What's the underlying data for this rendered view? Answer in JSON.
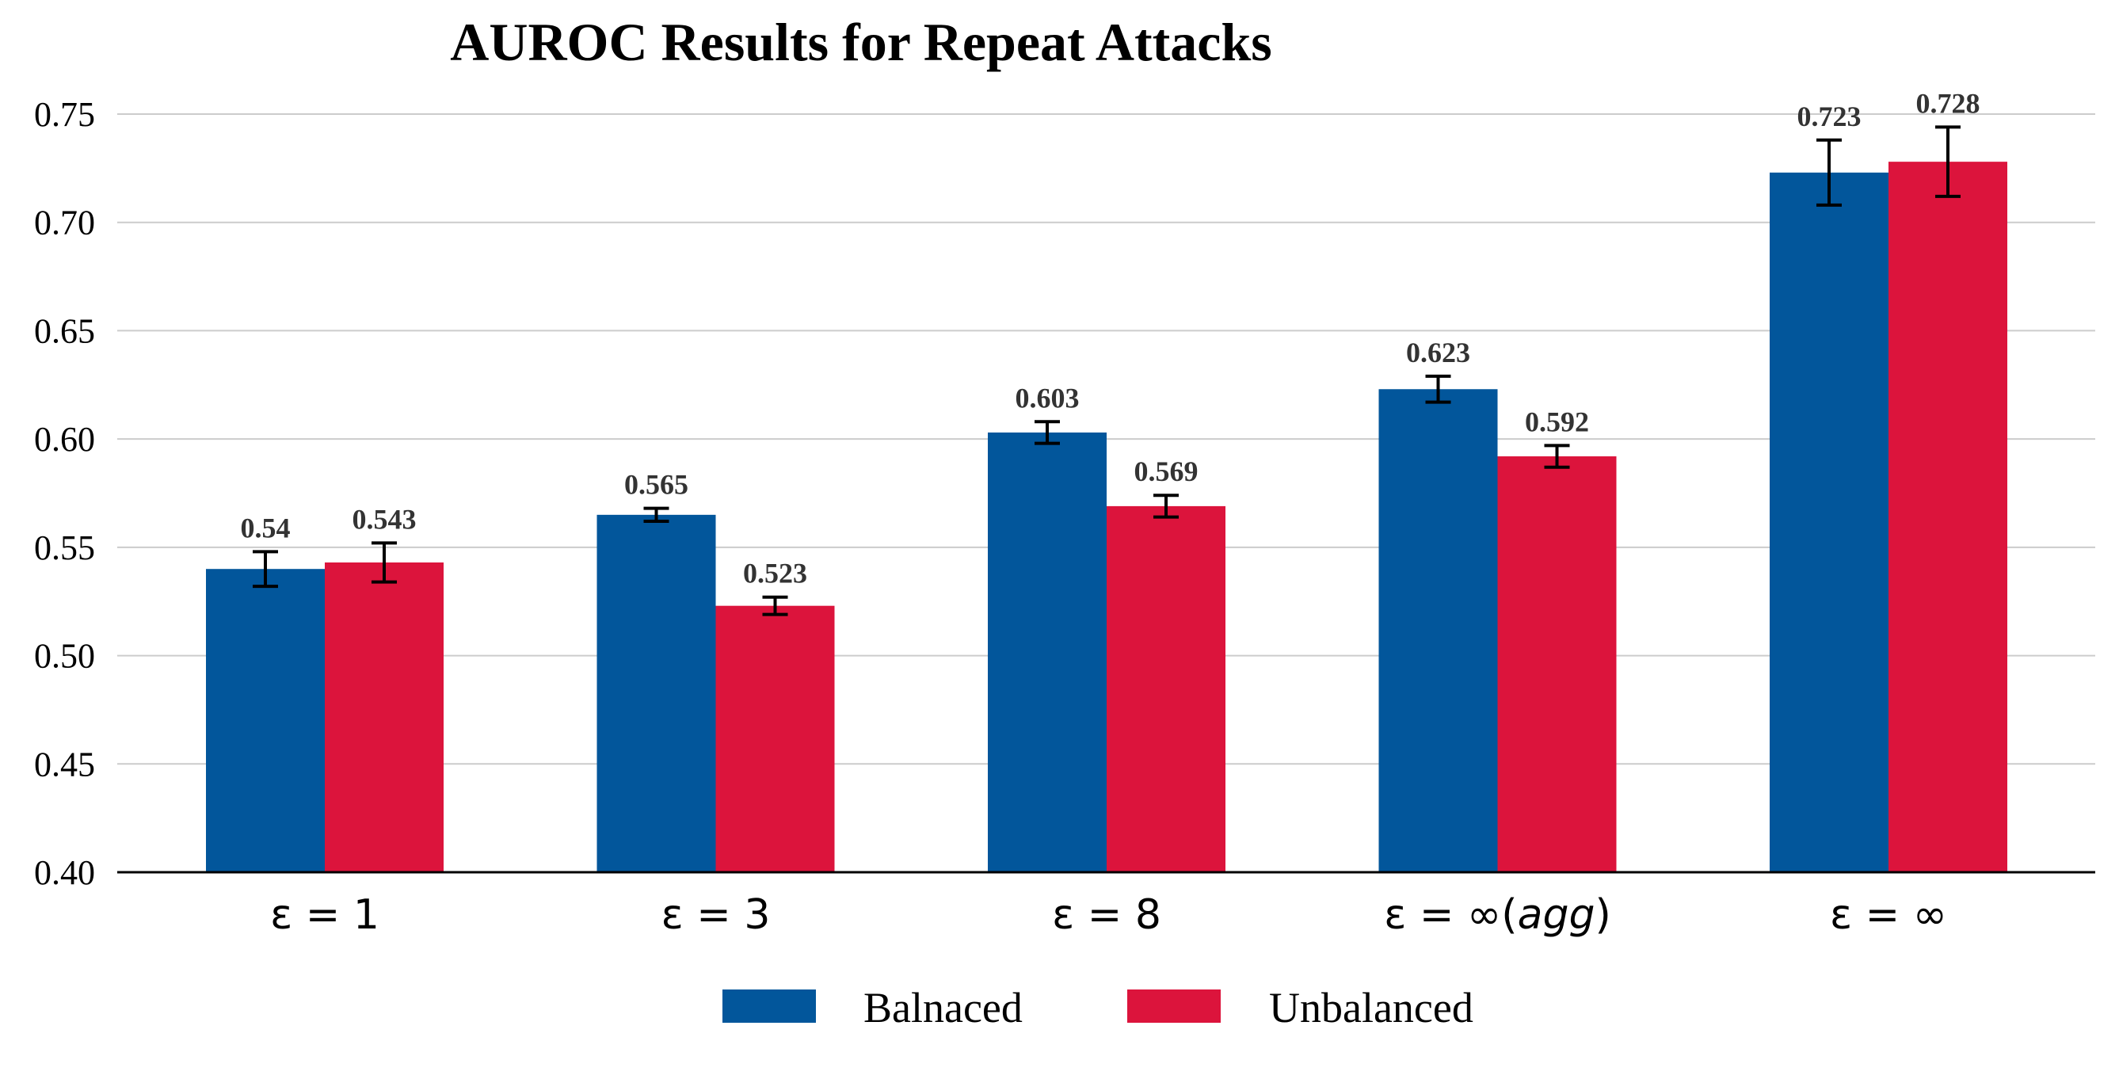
{
  "chart_data": {
    "type": "bar",
    "title": "AUROC Results for Repeat Attacks",
    "xlabel": "",
    "ylabel": "",
    "ylim": [
      0.4,
      0.75
    ],
    "yticks": [
      "0.40",
      "0.45",
      "0.50",
      "0.55",
      "0.60",
      "0.65",
      "0.70",
      "0.75"
    ],
    "grid": true,
    "legend_position": "bottom-center",
    "categories": [
      {
        "prefix": "ε = 1",
        "suffix": ""
      },
      {
        "prefix": "ε = 3",
        "suffix": ""
      },
      {
        "prefix": "ε = 8",
        "suffix": ""
      },
      {
        "prefix": "ε = ∞(",
        "suffix": "agg",
        "close": ")"
      },
      {
        "prefix": "ε = ∞",
        "suffix": ""
      }
    ],
    "series": [
      {
        "name": "Balnaced",
        "color": "#02569B",
        "values": [
          0.54,
          0.565,
          0.603,
          0.623,
          0.723
        ],
        "labels": [
          "0.54",
          "0.565",
          "0.603",
          "0.623",
          "0.723"
        ],
        "error": [
          0.008,
          0.003,
          0.005,
          0.006,
          0.015
        ]
      },
      {
        "name": "Unbalanced",
        "color": "#DC143C",
        "values": [
          0.543,
          0.523,
          0.569,
          0.592,
          0.728
        ],
        "labels": [
          "0.543",
          "0.523",
          "0.569",
          "0.592",
          "0.728"
        ],
        "error": [
          0.009,
          0.004,
          0.005,
          0.005,
          0.016
        ]
      }
    ]
  }
}
